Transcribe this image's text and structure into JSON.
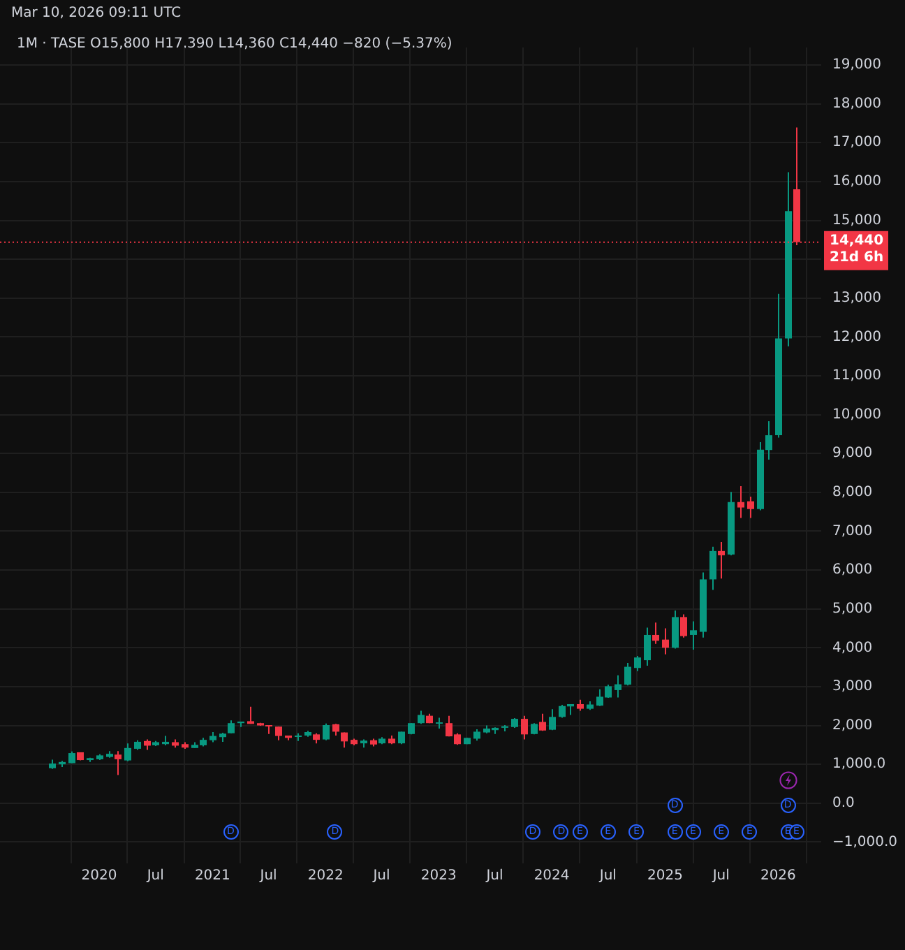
{
  "chart_data": {
    "type": "candlestick",
    "title": "1M · TASE  O15,800  H17,390  L14,360  C14,440  −820 (−5.37%)",
    "subtitle": "Mar 10, 2026 09:11 UTC",
    "x": [
      "2019-08",
      "2019-09",
      "2019-10",
      "2019-11",
      "2019-12",
      "2020-01",
      "2020-02",
      "2020-03",
      "2020-04",
      "2020-05",
      "2020-06",
      "2020-07",
      "2020-08",
      "2020-09",
      "2020-10",
      "2020-11",
      "2020-12",
      "2021-01",
      "2021-02",
      "2021-03",
      "2021-04",
      "2021-05",
      "2021-06",
      "2021-07",
      "2021-08",
      "2021-09",
      "2021-10",
      "2021-11",
      "2021-12",
      "2022-01",
      "2022-02",
      "2022-03",
      "2022-04",
      "2022-05",
      "2022-06",
      "2022-07",
      "2022-08",
      "2022-09",
      "2022-10",
      "2022-11",
      "2022-12",
      "2023-01",
      "2023-02",
      "2023-03",
      "2023-04",
      "2023-05",
      "2023-06",
      "2023-07",
      "2023-08",
      "2023-09",
      "2023-10",
      "2023-11",
      "2023-12",
      "2024-01",
      "2024-02",
      "2024-03",
      "2024-04",
      "2024-05",
      "2024-06",
      "2024-07",
      "2024-08",
      "2024-09",
      "2024-10",
      "2024-11",
      "2024-12",
      "2025-01",
      "2025-02",
      "2025-03",
      "2025-04",
      "2025-05",
      "2025-06",
      "2025-07",
      "2025-08",
      "2025-09",
      "2025-10",
      "2025-11",
      "2025-12",
      "2026-01",
      "2026-02",
      "2026-03"
    ],
    "ohlc": [
      [
        900,
        1120,
        880,
        1020
      ],
      [
        1000,
        1090,
        930,
        1060
      ],
      [
        1030,
        1330,
        1030,
        1290
      ],
      [
        1310,
        1310,
        1100,
        1110
      ],
      [
        1110,
        1170,
        1060,
        1160
      ],
      [
        1130,
        1260,
        1110,
        1230
      ],
      [
        1190,
        1340,
        1170,
        1270
      ],
      [
        1250,
        1340,
        725,
        1130
      ],
      [
        1100,
        1540,
        1080,
        1420
      ],
      [
        1400,
        1620,
        1370,
        1580
      ],
      [
        1600,
        1640,
        1370,
        1480
      ],
      [
        1490,
        1600,
        1470,
        1570
      ],
      [
        1520,
        1730,
        1490,
        1580
      ],
      [
        1570,
        1640,
        1430,
        1480
      ],
      [
        1520,
        1570,
        1400,
        1430
      ],
      [
        1420,
        1570,
        1420,
        1500
      ],
      [
        1490,
        1680,
        1460,
        1630
      ],
      [
        1620,
        1830,
        1570,
        1730
      ],
      [
        1700,
        1810,
        1580,
        1790
      ],
      [
        1800,
        2130,
        1800,
        2060
      ],
      [
        2060,
        2100,
        1960,
        2100
      ],
      [
        2110,
        2480,
        2040,
        2040
      ],
      [
        2060,
        2070,
        1990,
        2000
      ],
      [
        2010,
        2010,
        1780,
        1980
      ],
      [
        1970,
        1970,
        1620,
        1730
      ],
      [
        1740,
        1740,
        1620,
        1680
      ],
      [
        1710,
        1800,
        1600,
        1740
      ],
      [
        1740,
        1860,
        1710,
        1830
      ],
      [
        1770,
        1800,
        1540,
        1630
      ],
      [
        1640,
        2050,
        1620,
        2010
      ],
      [
        2030,
        2040,
        1740,
        1840
      ],
      [
        1820,
        1820,
        1430,
        1590
      ],
      [
        1630,
        1660,
        1490,
        1520
      ],
      [
        1540,
        1640,
        1430,
        1610
      ],
      [
        1620,
        1660,
        1460,
        1510
      ],
      [
        1540,
        1700,
        1520,
        1660
      ],
      [
        1660,
        1740,
        1520,
        1540
      ],
      [
        1540,
        1840,
        1520,
        1840
      ],
      [
        1780,
        2060,
        1770,
        2060
      ],
      [
        2060,
        2380,
        2040,
        2270
      ],
      [
        2250,
        2300,
        2060,
        2060
      ],
      [
        2050,
        2200,
        1920,
        2080
      ],
      [
        2060,
        2250,
        1720,
        1720
      ],
      [
        1770,
        1800,
        1500,
        1520
      ],
      [
        1520,
        1680,
        1520,
        1680
      ],
      [
        1660,
        1900,
        1610,
        1840
      ],
      [
        1820,
        2000,
        1800,
        1920
      ],
      [
        1880,
        1950,
        1780,
        1940
      ],
      [
        1940,
        2010,
        1850,
        1980
      ],
      [
        1960,
        2190,
        1940,
        2170
      ],
      [
        2170,
        2250,
        1640,
        1770
      ],
      [
        1780,
        2060,
        1770,
        2040
      ],
      [
        2090,
        2300,
        1860,
        1870
      ],
      [
        1890,
        2420,
        1880,
        2220
      ],
      [
        2220,
        2530,
        2200,
        2500
      ],
      [
        2490,
        2550,
        2270,
        2550
      ],
      [
        2550,
        2660,
        2380,
        2430
      ],
      [
        2430,
        2620,
        2400,
        2540
      ],
      [
        2510,
        2930,
        2500,
        2740
      ],
      [
        2720,
        3050,
        2710,
        3010
      ],
      [
        2910,
        3290,
        2720,
        3060
      ],
      [
        3050,
        3610,
        3030,
        3510
      ],
      [
        3480,
        3790,
        3400,
        3750
      ],
      [
        3680,
        4520,
        3540,
        4330
      ],
      [
        4330,
        4650,
        4100,
        4180
      ],
      [
        4210,
        4500,
        3830,
        4000
      ],
      [
        4000,
        4960,
        3980,
        4790
      ],
      [
        4790,
        4860,
        4260,
        4300
      ],
      [
        4330,
        4680,
        3950,
        4450
      ],
      [
        4410,
        5940,
        4260,
        5760
      ],
      [
        5760,
        6600,
        5490,
        6490
      ],
      [
        6490,
        6720,
        5780,
        6380
      ],
      [
        6400,
        8010,
        6380,
        7750
      ],
      [
        7750,
        8160,
        7340,
        7610
      ],
      [
        7770,
        7890,
        7340,
        7570
      ],
      [
        7570,
        9290,
        7540,
        9100
      ],
      [
        9090,
        9830,
        8840,
        9470
      ],
      [
        9470,
        13110,
        9410,
        11960
      ],
      [
        11960,
        16240,
        11760,
        15240
      ],
      [
        15800,
        17390,
        14360,
        14440
      ]
    ],
    "colors": [
      "#089981",
      "#089981",
      "#089981",
      "#f23645",
      "#089981",
      "#089981",
      "#089981",
      "#f23645",
      "#089981",
      "#089981",
      "#f23645",
      "#089981",
      "#089981",
      "#f23645",
      "#f23645",
      "#089981",
      "#089981",
      "#089981",
      "#089981",
      "#089981",
      "#089981",
      "#f23645",
      "#f23645",
      "#f23645",
      "#f23645",
      "#f23645",
      "#089981",
      "#089981",
      "#f23645",
      "#089981",
      "#f23645",
      "#f23645",
      "#f23645",
      "#089981",
      "#f23645",
      "#089981",
      "#f23645",
      "#089981",
      "#089981",
      "#089981",
      "#f23645",
      "#089981",
      "#f23645",
      "#f23645",
      "#089981",
      "#089981",
      "#089981",
      "#089981",
      "#089981",
      "#089981",
      "#f23645",
      "#089981",
      "#f23645",
      "#089981",
      "#089981",
      "#089981",
      "#f23645",
      "#089981",
      "#089981",
      "#089981",
      "#089981",
      "#089981",
      "#089981",
      "#089981",
      "#f23645",
      "#f23645",
      "#089981",
      "#f23645",
      "#089981",
      "#089981",
      "#089981",
      "#f23645",
      "#089981",
      "#f23645",
      "#f23645",
      "#089981",
      "#089981",
      "#089981",
      "#089981",
      "#f23645"
    ],
    "xlim": [
      "2019-02-15",
      "2026-05-20"
    ],
    "xticks": [
      {
        "value": "2020-01",
        "label": "2020"
      },
      {
        "value": "2020-07",
        "label": "Jul"
      },
      {
        "value": "2021-01",
        "label": "2021"
      },
      {
        "value": "2021-07",
        "label": "Jul"
      },
      {
        "value": "2022-01",
        "label": "2022"
      },
      {
        "value": "2022-07",
        "label": "Jul"
      },
      {
        "value": "2023-01",
        "label": "2023"
      },
      {
        "value": "2023-07",
        "label": "Jul"
      },
      {
        "value": "2024-01",
        "label": "2024"
      },
      {
        "value": "2024-07",
        "label": "Jul"
      },
      {
        "value": "2025-01",
        "label": "2025"
      },
      {
        "value": "2025-07",
        "label": "Jul"
      },
      {
        "value": "2026-01",
        "label": "2026"
      }
    ],
    "ylim": [
      -1550,
      19450
    ],
    "yticks": [
      {
        "value": -1000,
        "label": "−1,000.0"
      },
      {
        "value": 0,
        "label": "0.0"
      },
      {
        "value": 1000,
        "label": "1,000.0"
      },
      {
        "value": 2000,
        "label": "2,000"
      },
      {
        "value": 3000,
        "label": "3,000"
      },
      {
        "value": 4000,
        "label": "4,000"
      },
      {
        "value": 5000,
        "label": "5,000"
      },
      {
        "value": 6000,
        "label": "6,000"
      },
      {
        "value": 7000,
        "label": "7,000"
      },
      {
        "value": 8000,
        "label": "8,000"
      },
      {
        "value": 9000,
        "label": "9,000"
      },
      {
        "value": 10000,
        "label": "10,000"
      },
      {
        "value": 11000,
        "label": "11,000"
      },
      {
        "value": 12000,
        "label": "12,000"
      },
      {
        "value": 13000,
        "label": "13,000"
      },
      {
        "value": 14000,
        "label": null
      },
      {
        "value": 15000,
        "label": "15,000"
      },
      {
        "value": 16000,
        "label": "16,000"
      },
      {
        "value": 17000,
        "label": "17,000"
      },
      {
        "value": 18000,
        "label": "18,000"
      },
      {
        "value": 19000,
        "label": "19,000"
      }
    ],
    "grid": true,
    "ref_lines": [
      {
        "axis": "y",
        "value": 14440,
        "label": "14,440",
        "color": "#f23645",
        "line_style": "dotted"
      }
    ],
    "annotations": [
      "21d 6h",
      {
        "text": "D",
        "x": "2021-03",
        "y": -750
      },
      {
        "text": "D",
        "x": "2022-02",
        "y": -750
      },
      {
        "text": "D",
        "x": "2023-11",
        "y": -750
      },
      {
        "text": "D",
        "x": "2024-02",
        "y": -750
      },
      {
        "text": "E",
        "x": "2024-04",
        "y": -750
      },
      {
        "text": "E",
        "x": "2024-07",
        "y": -750
      },
      {
        "text": "E",
        "x": "2024-10",
        "y": -750
      },
      {
        "text": "D",
        "x": "2025-02",
        "y": -70
      },
      {
        "text": "E",
        "x": "2025-02",
        "y": -750
      },
      {
        "text": "E",
        "x": "2025-04",
        "y": -750
      },
      {
        "text": "E",
        "x": "2025-07",
        "y": -750
      },
      {
        "text": "E",
        "x": "2025-10",
        "y": -750
      },
      {
        "text": "D",
        "x": "2026-02",
        "y": -70
      },
      {
        "text": "E",
        "x": "2026-02",
        "y": -750
      },
      {
        "text": "E",
        "x": "2026-03",
        "y": -750
      }
    ]
  }
}
